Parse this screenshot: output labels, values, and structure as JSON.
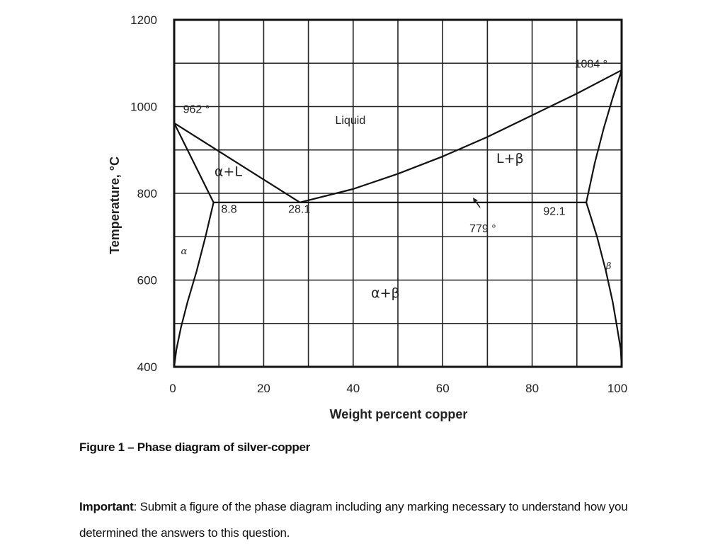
{
  "figure": {
    "caption": "Figure 1 – Phase diagram of silver-copper"
  },
  "note": {
    "bold": "Important",
    "text": ": Submit a figure of the phase diagram including any marking necessary to understand how you determined the answers to this question."
  },
  "chart_data": {
    "type": "line",
    "title": "Phase diagram of silver-copper",
    "xlabel": "Weight percent copper",
    "ylabel": "Temperature, °C",
    "xlim": [
      0,
      100
    ],
    "ylim": [
      400,
      1200
    ],
    "grid": true,
    "x_ticks": [
      0,
      20,
      40,
      60,
      80,
      100
    ],
    "y_ticks": [
      400,
      600,
      800,
      1000,
      1200
    ],
    "x_grid_step": 10,
    "y_grid_step": 100,
    "series": [
      {
        "name": "Liquidus (Ag side)",
        "x": [
          0,
          28.1
        ],
        "y": [
          962,
          779
        ]
      },
      {
        "name": "Liquidus (Cu side)",
        "x": [
          28.1,
          40,
          50,
          60,
          70,
          80,
          90,
          100
        ],
        "y": [
          779,
          810,
          845,
          885,
          930,
          980,
          1030,
          1084
        ]
      },
      {
        "name": "Solidus alpha",
        "x": [
          0,
          8.8
        ],
        "y": [
          962,
          779
        ]
      },
      {
        "name": "Solidus beta",
        "x": [
          92.1,
          94,
          96,
          98,
          100
        ],
        "y": [
          779,
          870,
          950,
          1020,
          1084
        ]
      },
      {
        "name": "Eutectic isotherm",
        "x": [
          8.8,
          92.1
        ],
        "y": [
          779,
          779
        ]
      },
      {
        "name": "Solvus alpha",
        "x": [
          8.8,
          7,
          5,
          3,
          1.5,
          0.5,
          0
        ],
        "y": [
          779,
          700,
          620,
          550,
          490,
          440,
          400
        ]
      },
      {
        "name": "Solvus beta",
        "x": [
          92.1,
          94.5,
          96.5,
          98,
          99,
          99.8,
          100
        ],
        "y": [
          779,
          700,
          620,
          550,
          490,
          440,
          400
        ]
      }
    ],
    "annotations": [
      {
        "text": "962 °",
        "x": 2,
        "y": 985
      },
      {
        "text": "1084 °",
        "x": 89.5,
        "y": 1090
      },
      {
        "text": "Liquid",
        "x": 36,
        "y": 960
      },
      {
        "text": "α+L",
        "x": 9,
        "y": 840
      },
      {
        "text": "L+β",
        "x": 72,
        "y": 870
      },
      {
        "text": "8.8",
        "x": 10.5,
        "y": 755
      },
      {
        "text": "28.1",
        "x": 25.5,
        "y": 755
      },
      {
        "text": "779 °",
        "x": 66,
        "y": 710
      },
      {
        "text": "92.1",
        "x": 82.5,
        "y": 750
      },
      {
        "text": "α",
        "x": 1.5,
        "y": 660
      },
      {
        "text": "β",
        "x": 96.5,
        "y": 625
      },
      {
        "text": "α+β",
        "x": 44,
        "y": 560
      }
    ],
    "eutectic": {
      "composition": 28.1,
      "temperature": 779
    },
    "melting_points": {
      "Ag": 962,
      "Cu": 1084
    }
  }
}
